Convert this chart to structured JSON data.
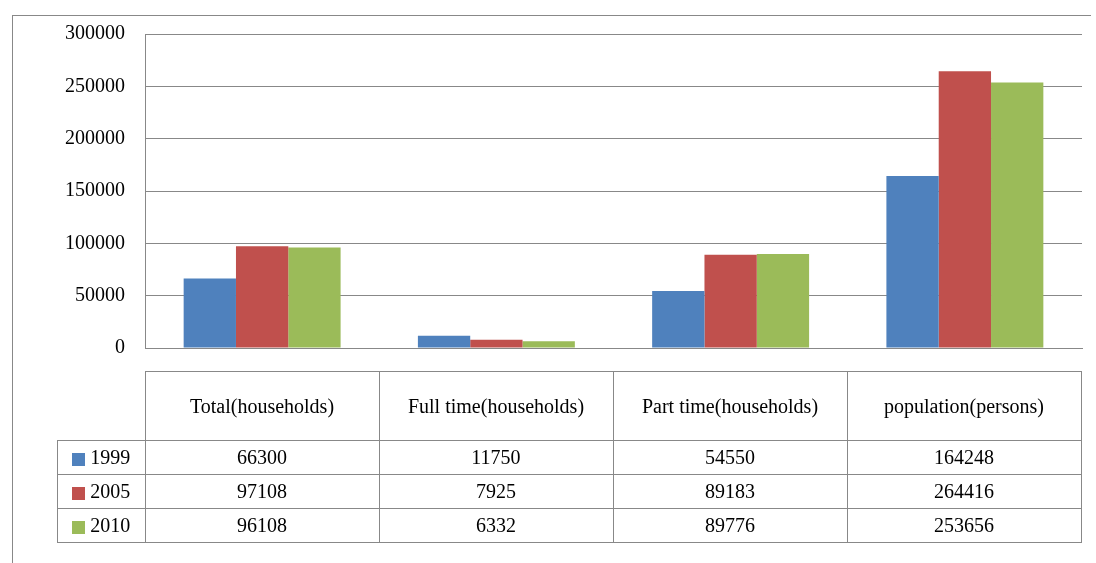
{
  "chart_data": {
    "type": "bar",
    "categories": [
      "Total(households)",
      "Full time(households)",
      "Part time(households)",
      "population(persons)"
    ],
    "series": [
      {
        "name": "1999",
        "color": "#4f81bd",
        "values": [
          66300,
          11750,
          54550,
          164248
        ]
      },
      {
        "name": "2005",
        "color": "#c0504d",
        "values": [
          97108,
          7925,
          89183,
          264416
        ]
      },
      {
        "name": "2010",
        "color": "#9bbb59",
        "values": [
          96108,
          6332,
          89776,
          253656
        ]
      }
    ],
    "ylim": [
      0,
      300000
    ],
    "yticks": [
      0,
      50000,
      100000,
      150000,
      200000,
      250000,
      300000
    ],
    "grid": "y",
    "legend": "bottom",
    "data_labels": true
  }
}
